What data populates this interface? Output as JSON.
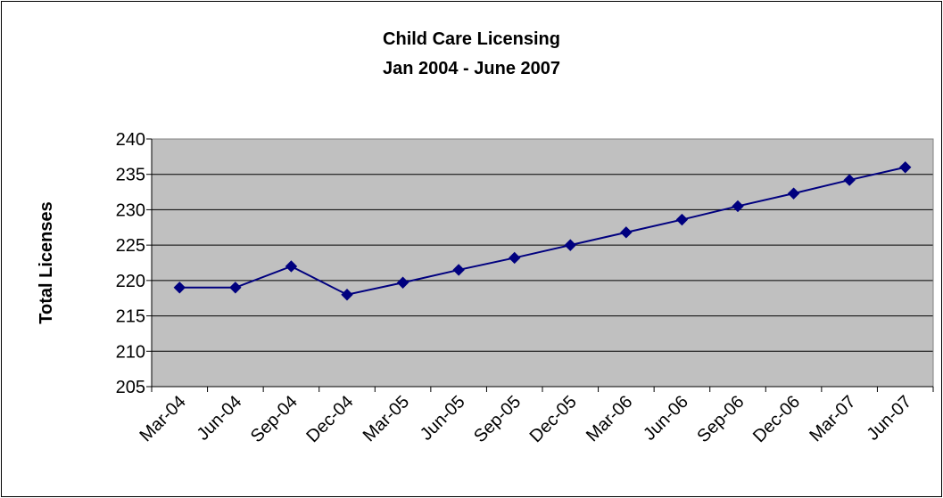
{
  "chart_data": {
    "type": "line",
    "title": "Child Care Licensing",
    "subtitle": "Jan 2004 - June 2007",
    "xlabel": "",
    "ylabel": "Total Licenses",
    "ylim": [
      205,
      240
    ],
    "yticks": [
      205,
      210,
      215,
      220,
      225,
      230,
      235,
      240
    ],
    "grid": true,
    "legend": "none",
    "categories": [
      "Mar-04",
      "Jun-04",
      "Sep-04",
      "Dec-04",
      "Mar-05",
      "Jun-05",
      "Sep-05",
      "Dec-05",
      "Mar-06",
      "Jun-06",
      "Sep-06",
      "Dec-06",
      "Mar-07",
      "Jun-07"
    ],
    "series": [
      {
        "values": [
          219,
          219,
          222,
          218,
          219.7,
          221.5,
          223.2,
          225,
          226.8,
          228.6,
          230.5,
          232.3,
          234.2,
          236
        ]
      }
    ],
    "colors": {
      "line": "#00007F",
      "marker": "#00007F",
      "plot_bg": "#C0C0C0",
      "grid": "#000000"
    }
  }
}
